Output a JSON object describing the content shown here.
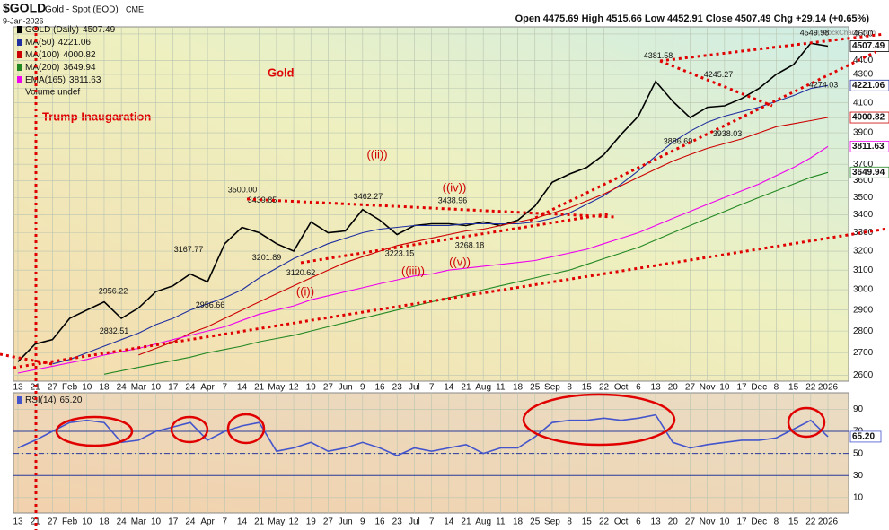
{
  "header": {
    "symbol": "$GOLD",
    "name": "Gold - Spot (EOD)",
    "exchange": "CME",
    "date": "9-Jan-2026",
    "quote": "Open 4475.69 High 4515.66 Low 4452.91 Close 4507.49 Chg +29.14 (+0.65%)",
    "copyright": "© StockCharts.com"
  },
  "chart_data": [
    {
      "type": "line",
      "title": "Gold",
      "annotation": "Trump Inaugaration",
      "volume_label": "Volume undef",
      "log_scale": true,
      "grid": true,
      "categories": [
        "13",
        "21",
        "27",
        "Feb",
        "10",
        "18",
        "24",
        "Mar",
        "10",
        "17",
        "24",
        "Apr",
        "7",
        "14",
        "21",
        "May",
        "12",
        "19",
        "27",
        "Jun",
        "9",
        "16",
        "23",
        "Jul",
        "7",
        "14",
        "21",
        "Aug",
        "11",
        "18",
        "25",
        "Sep",
        "8",
        "15",
        "22",
        "Oct",
        "6",
        "13",
        "20",
        "27",
        "Nov",
        "10",
        "17",
        "Dec",
        "8",
        "15",
        "22",
        "2026"
      ],
      "ylim": [
        2575,
        4655
      ],
      "yticks": [
        2600,
        2700,
        2800,
        2900,
        3000,
        3100,
        3200,
        3300,
        3400,
        3500,
        3600,
        3700,
        3800,
        3900,
        4000,
        4100,
        4200,
        4300,
        4400,
        4600
      ],
      "series": [
        {
          "name": "GOLD (Daily)",
          "color": "#000000",
          "values": [
            2660,
            2740,
            2760,
            2860,
            2900,
            2940,
            2860,
            2910,
            2990,
            3020,
            3080,
            3040,
            3240,
            3330,
            3300,
            3240,
            3200,
            3360,
            3300,
            3310,
            3430,
            3370,
            3290,
            3340,
            3350,
            3350,
            3340,
            3360,
            3340,
            3370,
            3450,
            3590,
            3640,
            3680,
            3760,
            3890,
            4010,
            4250,
            4110,
            4000,
            4070,
            4080,
            4130,
            4200,
            4300,
            4370,
            4530,
            4507.49
          ]
        },
        {
          "name": "MA(50)",
          "color": "#1f2f9f",
          "values": [
            null,
            null,
            2650,
            2670,
            2700,
            2730,
            2760,
            2790,
            2830,
            2860,
            2900,
            2930,
            2960,
            3000,
            3060,
            3110,
            3160,
            3200,
            3240,
            3270,
            3300,
            3320,
            3330,
            3340,
            3340,
            3340,
            3350,
            3350,
            3350,
            3350,
            3360,
            3380,
            3410,
            3460,
            3510,
            3580,
            3660,
            3750,
            3840,
            3910,
            3970,
            4010,
            4040,
            4070,
            4110,
            4150,
            4200,
            4221.06
          ]
        },
        {
          "name": "MA(100)",
          "color": "#cc0000",
          "values": [
            null,
            null,
            null,
            null,
            null,
            null,
            null,
            2690,
            2720,
            2750,
            2790,
            2820,
            2860,
            2900,
            2940,
            2980,
            3020,
            3060,
            3100,
            3140,
            3170,
            3200,
            3230,
            3250,
            3270,
            3290,
            3310,
            3320,
            3340,
            3360,
            3380,
            3410,
            3440,
            3480,
            3520,
            3570,
            3620,
            3670,
            3720,
            3760,
            3800,
            3830,
            3860,
            3900,
            3940,
            3960,
            3980,
            4000.82
          ]
        },
        {
          "name": "MA(200)",
          "color": "#228822",
          "values": [
            null,
            null,
            null,
            null,
            null,
            2605,
            2620,
            2635,
            2650,
            2665,
            2680,
            2700,
            2715,
            2730,
            2750,
            2765,
            2780,
            2800,
            2820,
            2840,
            2860,
            2880,
            2900,
            2920,
            2940,
            2960,
            2980,
            3000,
            3020,
            3040,
            3060,
            3080,
            3100,
            3130,
            3160,
            3190,
            3220,
            3260,
            3300,
            3340,
            3380,
            3420,
            3460,
            3500,
            3540,
            3580,
            3620,
            3649.94
          ]
        },
        {
          "name": "EMA(165)",
          "color": "#ee00ee",
          "values": [
            2610,
            2625,
            2640,
            2655,
            2670,
            2690,
            2705,
            2720,
            2740,
            2760,
            2780,
            2800,
            2820,
            2850,
            2880,
            2900,
            2920,
            2950,
            2970,
            2990,
            3010,
            3030,
            3050,
            3070,
            3080,
            3100,
            3110,
            3120,
            3130,
            3140,
            3150,
            3170,
            3190,
            3210,
            3240,
            3270,
            3300,
            3340,
            3380,
            3420,
            3460,
            3500,
            3540,
            3580,
            3630,
            3680,
            3740,
            3811.63
          ]
        }
      ],
      "price_labels": [
        {
          "value": 3500,
          "label": "3500.00"
        },
        {
          "value": 3439.85,
          "label": "3439.85"
        },
        {
          "value": 3462.27,
          "label": "3462.27"
        },
        {
          "value": 3438.96,
          "label": "3438.96"
        },
        {
          "value": 4381.58,
          "label": "4381.58"
        },
        {
          "value": 4245.27,
          "label": "4245.27"
        },
        {
          "value": 4549.98,
          "label": "4549.98"
        },
        {
          "value": 3167.77,
          "label": "3167.77"
        },
        {
          "value": 2956.22,
          "label": "2956.22"
        },
        {
          "value": 4274.03,
          "label": "4274.03"
        },
        {
          "value": 3886.69,
          "label": "3886.69"
        },
        {
          "value": 3938.03,
          "label": "3938.03"
        },
        {
          "value": 2832.51,
          "label": "2832.51"
        },
        {
          "value": 2956.66,
          "label": "2956.66"
        },
        {
          "value": 3201.89,
          "label": "3201.89"
        },
        {
          "value": 3120.62,
          "label": "3120.62"
        },
        {
          "value": 3223.15,
          "label": "3223.15"
        },
        {
          "value": 3268.18,
          "label": "3268.18"
        }
      ],
      "wave_labels": [
        "((ii))",
        "((iv))",
        "((i))",
        "((iii))",
        "((v))"
      ]
    },
    {
      "type": "line",
      "grid": true,
      "categories": [
        "13",
        "21",
        "27",
        "Feb",
        "10",
        "18",
        "24",
        "Mar",
        "10",
        "17",
        "24",
        "Apr",
        "7",
        "14",
        "21",
        "May",
        "12",
        "19",
        "27",
        "Jun",
        "9",
        "16",
        "23",
        "Jul",
        "7",
        "14",
        "21",
        "Aug",
        "11",
        "18",
        "25",
        "Sep",
        "8",
        "15",
        "22",
        "Oct",
        "6",
        "13",
        "20",
        "27",
        "Nov",
        "10",
        "17",
        "Dec",
        "8",
        "15",
        "22",
        "2026"
      ],
      "ylim": [
        -4,
        105
      ],
      "yticks": [
        10,
        30,
        50,
        70,
        90
      ],
      "levels": [
        30,
        50,
        70
      ],
      "series": [
        {
          "name": "RSI(14)",
          "color": "#4455cc",
          "values": [
            55,
            62,
            70,
            78,
            80,
            78,
            60,
            62,
            70,
            74,
            78,
            62,
            70,
            75,
            78,
            52,
            55,
            60,
            52,
            55,
            60,
            55,
            48,
            55,
            52,
            55,
            58,
            50,
            55,
            55,
            65,
            78,
            80,
            80,
            82,
            80,
            82,
            85,
            60,
            55,
            58,
            60,
            62,
            62,
            64,
            72,
            80,
            65.2
          ],
          "value_labels": [
            null,
            null,
            null,
            null,
            null,
            null,
            null,
            null,
            null,
            null,
            null,
            null,
            null,
            null,
            null,
            null,
            null,
            null,
            null,
            null,
            null,
            null,
            null,
            null,
            null,
            null,
            null,
            null,
            null,
            null,
            null,
            null,
            null,
            null,
            null,
            null,
            null,
            null,
            null,
            null,
            null,
            null,
            null,
            null,
            null,
            null,
            null,
            "65.20"
          ]
        }
      ]
    }
  ]
}
